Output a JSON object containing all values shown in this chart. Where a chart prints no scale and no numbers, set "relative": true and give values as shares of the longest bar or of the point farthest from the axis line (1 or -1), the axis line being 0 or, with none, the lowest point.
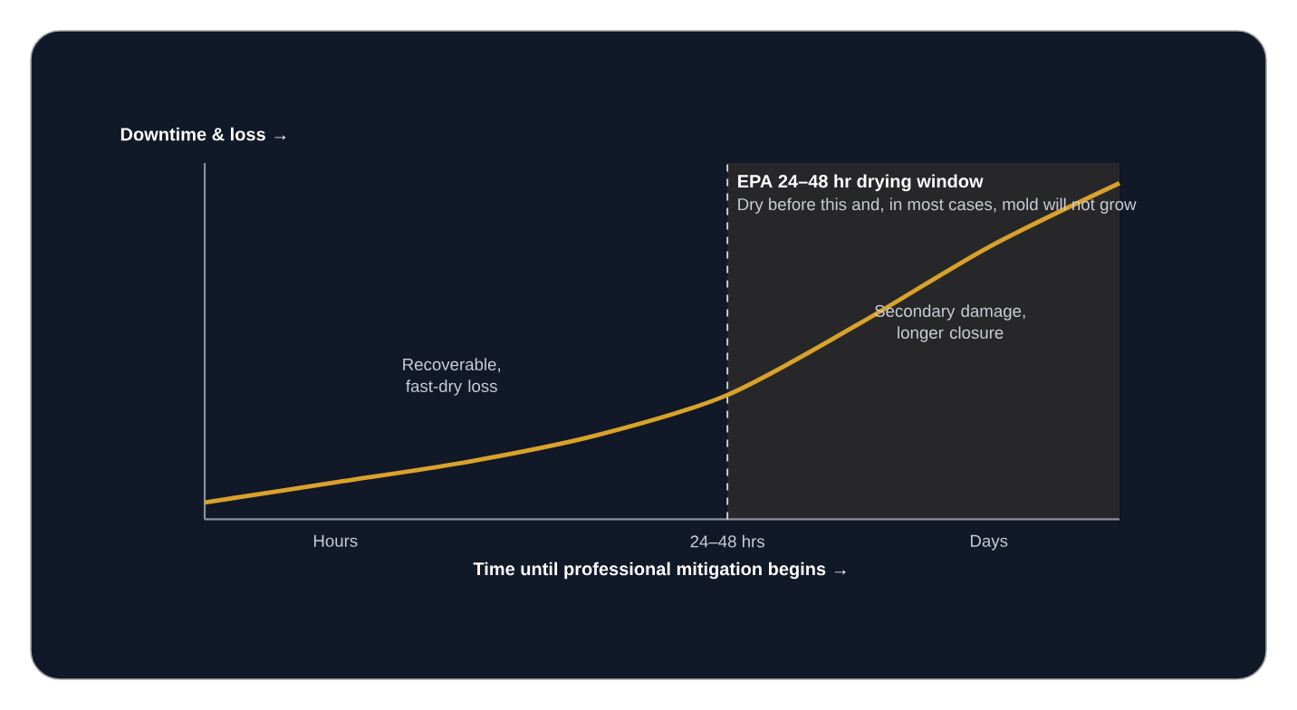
{
  "chart_data": {
    "type": "line",
    "relative": true,
    "xlabel": "Time until professional mitigation begins →",
    "ylabel": "Downtime & loss →",
    "categories": [
      null,
      "Hours",
      null,
      null,
      "24–48 hrs",
      null,
      "Days",
      null
    ],
    "series": [
      {
        "color": "#d9a22b",
        "values": [
          0.05,
          0.11,
          0.17,
          0.25,
          0.37,
          0.58,
          0.81,
          1.0
        ]
      }
    ],
    "ref_lines": [
      {
        "axis": "x",
        "value": "24–48 hrs",
        "line_style": "dashed",
        "color": "#d1d5db"
      }
    ],
    "annotations": [
      "Recoverable, fast-dry loss",
      "Secondary damage, longer closure",
      "EPA 24–48 hr drying window",
      "Dry before this and, in most cases, mold will not grow"
    ],
    "marker": "none",
    "line_style": "solid"
  }
}
